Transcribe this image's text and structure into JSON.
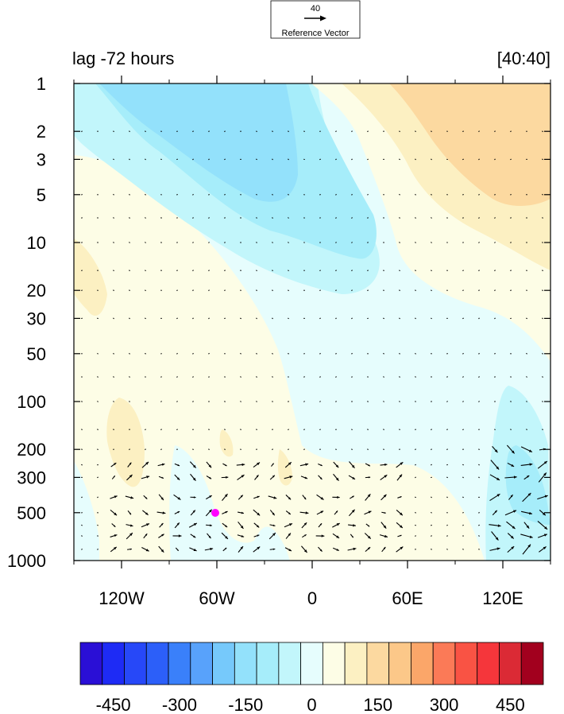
{
  "chart_data": {
    "type": "heatmap",
    "title_left": "lag -72 hours",
    "title_right": "[40:40]",
    "reference_vector": {
      "magnitude": "40",
      "label": "Reference Vector"
    },
    "x_axis": {
      "range": [
        -150,
        150
      ],
      "ticks": [
        -120,
        -60,
        0,
        60,
        120
      ],
      "tick_labels": [
        "120W",
        "60W",
        "0",
        "60E",
        "120E"
      ],
      "minor_ticks": [
        -150,
        -90,
        -30,
        30,
        90,
        150
      ]
    },
    "y_axis": {
      "scale": "log",
      "reversed": true,
      "range": [
        1,
        1000
      ],
      "ticks": [
        1,
        2,
        3,
        5,
        10,
        20,
        30,
        50,
        100,
        200,
        300,
        500,
        1000
      ],
      "tick_labels": [
        "1",
        "2",
        "3",
        "5",
        "10",
        "20",
        "30",
        "50",
        "100",
        "200",
        "300",
        "500",
        "1000"
      ]
    },
    "colorbar": {
      "levels": [
        -500,
        -450,
        -400,
        -350,
        -300,
        -250,
        -200,
        -150,
        -100,
        -50,
        0,
        50,
        100,
        150,
        200,
        250,
        300,
        350,
        400,
        450,
        500
      ],
      "tick_values": [
        -450,
        -300,
        -150,
        0,
        150,
        300,
        450
      ],
      "tick_labels": [
        "-450",
        "-300",
        "-150",
        "0",
        "150",
        "300",
        "450"
      ],
      "colors": [
        "#2a0fd6",
        "#1e2bf5",
        "#2748f8",
        "#2c5ff9",
        "#3a80fa",
        "#58a2fb",
        "#76c9fb",
        "#93e1fb",
        "#a6edfa",
        "#c2f6fb",
        "#e6fdfd",
        "#fdfde6",
        "#fcf0c2",
        "#fcd9a0",
        "#fcc889",
        "#fba669",
        "#fb7a57",
        "#f95344",
        "#f5363b",
        "#db2a35",
        "#a2001e"
      ]
    },
    "field": {
      "description": "zonal-vertical section of contoured anomaly with wind vectors",
      "regions": [
        {
          "level": -100,
          "label": "upper troposphere/stratosphere negative band"
        },
        {
          "level": 150,
          "label": "upper eastern positive"
        }
      ]
    },
    "marker": {
      "lon": -60,
      "p": 500,
      "color": "#ff00ff"
    }
  }
}
